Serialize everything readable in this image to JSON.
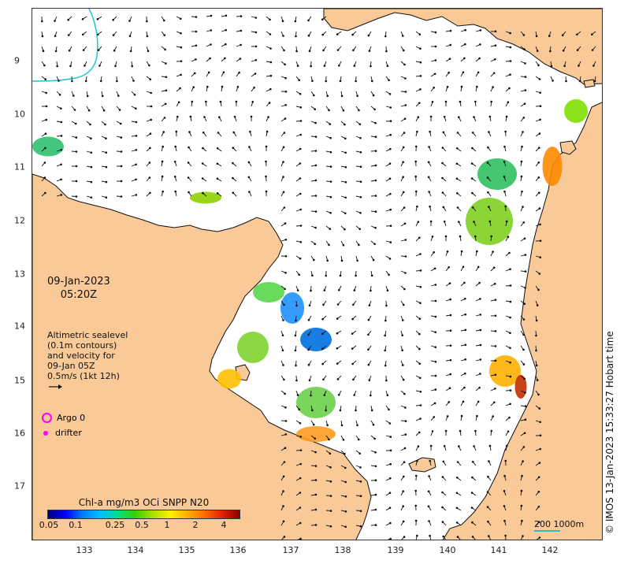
{
  "map": {
    "x_ticks": [
      "133",
      "134",
      "135",
      "136",
      "137",
      "138",
      "139",
      "140",
      "141",
      "142"
    ],
    "y_ticks": [
      "9",
      "10",
      "11",
      "12",
      "13",
      "14",
      "15",
      "16",
      "17"
    ],
    "land_color": "#f9c997",
    "sea_color": "#ffffff",
    "contour_color": "#20c4d8"
  },
  "overlay": {
    "date": "09-Jan-2023",
    "time": "05:20Z",
    "legend_lines": [
      "Altimetric sealevel",
      "(0.1m contours)",
      "and velocity for",
      "09-Jan 05Z",
      "0.5m/s (1kt 12h)"
    ],
    "argo_label": "Argo 0",
    "drifter_label": "drifter"
  },
  "colorbar": {
    "title": "Chl-a mg/m3 OCi SNPP N20",
    "ticks": [
      "0.05",
      "0.1",
      "0.25",
      "0.5",
      "1",
      "2",
      "4"
    ]
  },
  "scale_bar": {
    "label": "200  1000m"
  },
  "copyright": "© IMOS 13-Jan-2023 15:33:27 Hobart time"
}
